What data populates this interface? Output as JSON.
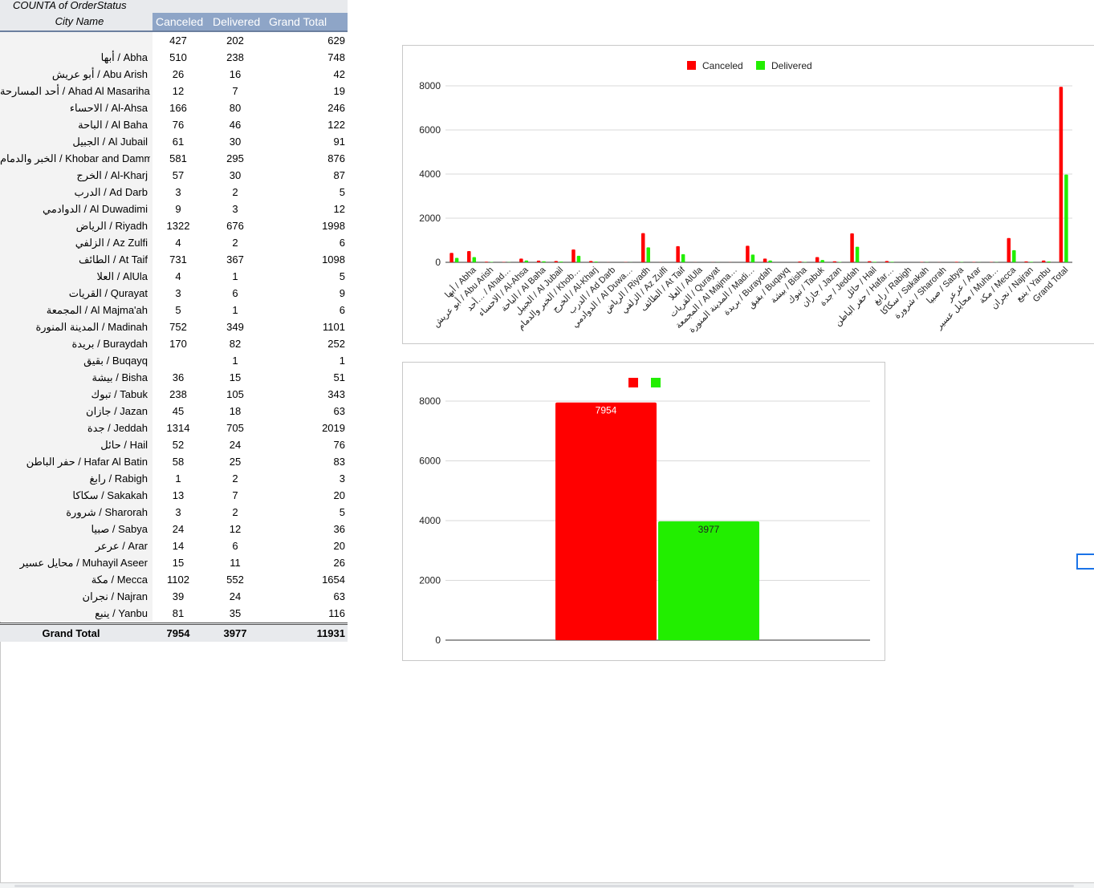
{
  "pivot": {
    "title": "COUNTA of OrderStatus",
    "headers": {
      "city": "City Name",
      "canceled": "Canceled",
      "delivered": "Delivered",
      "grand_total": "Grand Total"
    },
    "rows": [
      {
        "city": "",
        "canceled": "427",
        "delivered": "202",
        "total": "629"
      },
      {
        "city": "أبها / Abha",
        "canceled": "510",
        "delivered": "238",
        "total": "748"
      },
      {
        "city": "أبو عريش / Abu Arish",
        "canceled": "26",
        "delivered": "16",
        "total": "42"
      },
      {
        "city": "أحد المسارحة / Ahad Al Masarihah",
        "canceled": "12",
        "delivered": "7",
        "total": "19"
      },
      {
        "city": "الاحساء / Al-Ahsa",
        "canceled": "166",
        "delivered": "80",
        "total": "246"
      },
      {
        "city": "الباحة / Al Baha",
        "canceled": "76",
        "delivered": "46",
        "total": "122"
      },
      {
        "city": "الجبيل / Al Jubail",
        "canceled": "61",
        "delivered": "30",
        "total": "91"
      },
      {
        "city": "الخبر والدمام / Khobar and Dammam",
        "canceled": "581",
        "delivered": "295",
        "total": "876"
      },
      {
        "city": "الخرج / Al-Kharj",
        "canceled": "57",
        "delivered": "30",
        "total": "87"
      },
      {
        "city": "الدرب / Ad Darb",
        "canceled": "3",
        "delivered": "2",
        "total": "5"
      },
      {
        "city": "الدوادمي / Al Duwadimi",
        "canceled": "9",
        "delivered": "3",
        "total": "12"
      },
      {
        "city": "الرياض / Riyadh",
        "canceled": "1322",
        "delivered": "676",
        "total": "1998"
      },
      {
        "city": "الزلفي / Az Zulfi",
        "canceled": "4",
        "delivered": "2",
        "total": "6"
      },
      {
        "city": "الطائف / At Taif",
        "canceled": "731",
        "delivered": "367",
        "total": "1098"
      },
      {
        "city": "العلا / AlUla",
        "canceled": "4",
        "delivered": "1",
        "total": "5"
      },
      {
        "city": "القريات / Qurayat",
        "canceled": "3",
        "delivered": "6",
        "total": "9"
      },
      {
        "city": "المجمعة / Al Majma'ah",
        "canceled": "5",
        "delivered": "1",
        "total": "6"
      },
      {
        "city": "المدينة المنورة / Madinah",
        "canceled": "752",
        "delivered": "349",
        "total": "1101"
      },
      {
        "city": "بريدة / Buraydah",
        "canceled": "170",
        "delivered": "82",
        "total": "252"
      },
      {
        "city": "بقيق / Buqayq",
        "canceled": "",
        "delivered": "1",
        "total": "1"
      },
      {
        "city": "بيشة / Bisha",
        "canceled": "36",
        "delivered": "15",
        "total": "51"
      },
      {
        "city": "تبوك / Tabuk",
        "canceled": "238",
        "delivered": "105",
        "total": "343"
      },
      {
        "city": "جازان / Jazan",
        "canceled": "45",
        "delivered": "18",
        "total": "63"
      },
      {
        "city": "جدة / Jeddah",
        "canceled": "1314",
        "delivered": "705",
        "total": "2019"
      },
      {
        "city": "حائل / Hail",
        "canceled": "52",
        "delivered": "24",
        "total": "76"
      },
      {
        "city": "حفر الباطن / Hafar Al Batin",
        "canceled": "58",
        "delivered": "25",
        "total": "83"
      },
      {
        "city": "رابغ / Rabigh",
        "canceled": "1",
        "delivered": "2",
        "total": "3"
      },
      {
        "city": "سكاكا / Sakakah",
        "canceled": "13",
        "delivered": "7",
        "total": "20"
      },
      {
        "city": "شرورة / Sharorah",
        "canceled": "3",
        "delivered": "2",
        "total": "5"
      },
      {
        "city": "صبيا / Sabya",
        "canceled": "24",
        "delivered": "12",
        "total": "36"
      },
      {
        "city": "عرعر / Arar",
        "canceled": "14",
        "delivered": "6",
        "total": "20"
      },
      {
        "city": "محايل عسير / Muhayil Aseer",
        "canceled": "15",
        "delivered": "11",
        "total": "26"
      },
      {
        "city": "مكة / Mecca",
        "canceled": "1102",
        "delivered": "552",
        "total": "1654"
      },
      {
        "city": "نجران / Najran",
        "canceled": "39",
        "delivered": "24",
        "total": "63"
      },
      {
        "city": "ينبع / Yanbu",
        "canceled": "81",
        "delivered": "35",
        "total": "116"
      }
    ],
    "grand_total": {
      "label": "Grand Total",
      "canceled": "7954",
      "delivered": "3977",
      "total": "11931"
    }
  },
  "colors": {
    "canceled": "#ff0000",
    "delivered": "#22ee00",
    "header_bg": "#8ea5c7"
  },
  "chart_data": [
    {
      "type": "bar",
      "legend_position": "top",
      "categories": [
        "",
        "أبها / Abha",
        "أبو عريش / Abu Arish",
        "أحد… / Ahad…",
        "الاحساء / Al-Ahsa",
        "الباحة / Al Baha",
        "الجبيل / Al Jubail",
        "الخبر والدمام / Khob…",
        "الخرج / Al-Kharj",
        "الدرب / Ad Darb",
        "الدوادمي / Al Duwa…",
        "الرياض / Riyadh",
        "الزلفي / Az Zulfi",
        "الطائف / At Taif",
        "العلا / AlUla",
        "القريات / Qurayat",
        "المجمعة / Al Majma…",
        "المدينة المنورة / Madi…",
        "بريدة / Buraydah",
        "بقيق / Buqayq",
        "بيشة / Bisha",
        "تبوك / Tabuk",
        "جازان / Jazan",
        "جدة / Jeddah",
        "حائل / Hail",
        "حفر الباطن / Hafar…",
        "رابغ / Rabigh",
        "سكاكا / Sakakah",
        "شرورة / Sharorah",
        "صبيا / Sabya",
        "عرعر / Arar",
        "محايل عسير / Muha…",
        "مكة / Mecca",
        "نجران / Najran",
        "ينبع / Yanbu",
        "Grand Total"
      ],
      "series": [
        {
          "name": "Canceled",
          "values": [
            427,
            510,
            26,
            12,
            166,
            76,
            61,
            581,
            57,
            3,
            9,
            1322,
            4,
            731,
            4,
            3,
            5,
            752,
            170,
            0,
            36,
            238,
            45,
            1314,
            52,
            58,
            1,
            13,
            3,
            24,
            14,
            15,
            1102,
            39,
            81,
            7954
          ]
        },
        {
          "name": "Delivered",
          "values": [
            202,
            238,
            16,
            7,
            80,
            46,
            30,
            295,
            30,
            2,
            3,
            676,
            2,
            367,
            1,
            6,
            1,
            349,
            82,
            1,
            15,
            105,
            18,
            705,
            24,
            25,
            2,
            7,
            2,
            12,
            6,
            11,
            552,
            24,
            35,
            3977
          ]
        }
      ],
      "ylim": [
        0,
        8000
      ],
      "yticks": [
        "0",
        "2000",
        "4000",
        "6000",
        "8000"
      ],
      "grid": true
    },
    {
      "type": "bar",
      "legend_position": "top",
      "categories": [
        ""
      ],
      "series": [
        {
          "values": [
            7954
          ],
          "labels": [
            "7954"
          ]
        },
        {
          "values": [
            3977
          ],
          "labels": [
            "3977"
          ]
        }
      ],
      "ylim": [
        0,
        8000
      ],
      "yticks": [
        "0",
        "2000",
        "4000",
        "6000",
        "8000"
      ],
      "grid": true
    }
  ]
}
